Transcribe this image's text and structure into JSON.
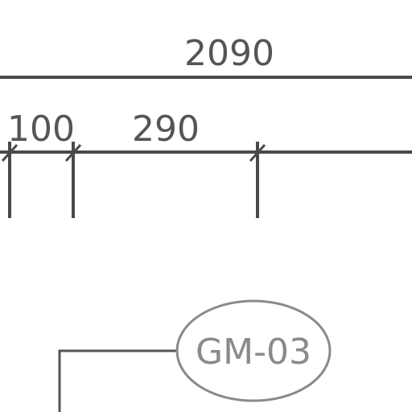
{
  "dimensions": {
    "overall_label": "2090",
    "segment_labels": [
      "100",
      "290"
    ]
  },
  "tag": {
    "label": "GM-03"
  },
  "colors": {
    "dimension_line": "#4a4a4a",
    "dimension_text": "#555555",
    "tag_outline": "#8a8a8a",
    "tag_text": "#8a8a8a",
    "leader_line": "#555555"
  }
}
